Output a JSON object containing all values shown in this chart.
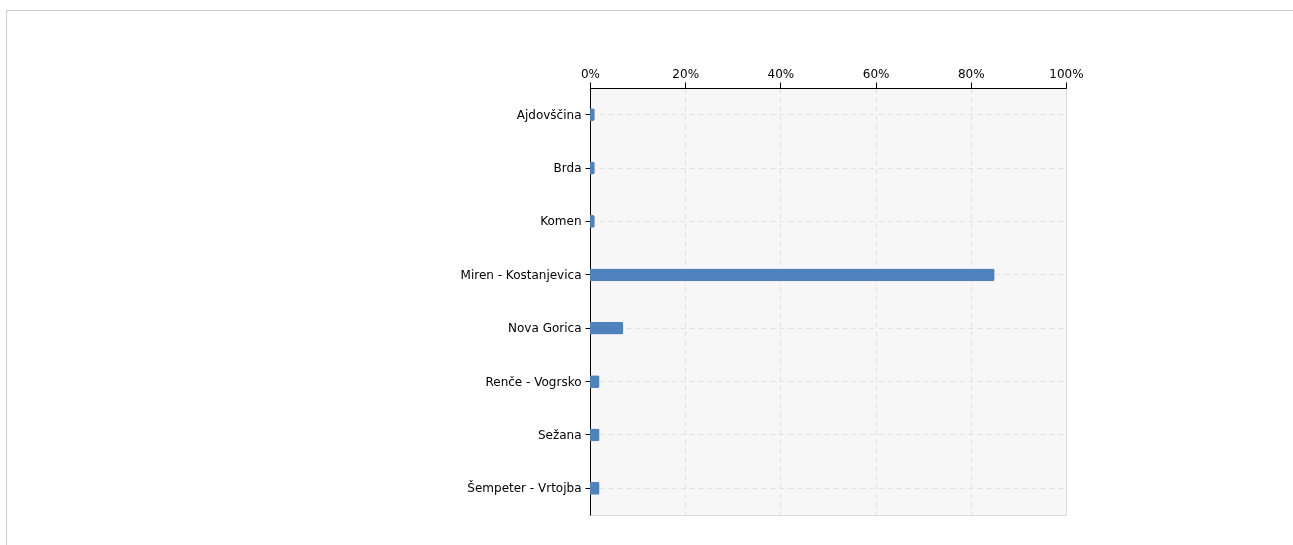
{
  "chart_data": {
    "type": "bar",
    "orientation": "horizontal",
    "categories": [
      "Ajdovščina",
      "Brda",
      "Komen",
      "Miren - Kostanjevica",
      "Nova Gorica",
      "Renče - Vogrsko",
      "Sežana",
      "Šempeter - Vrtojba"
    ],
    "values": [
      1,
      1,
      1,
      85,
      7,
      2,
      2,
      2
    ],
    "color": "#4f81bd",
    "xlim": [
      0,
      100
    ],
    "xticks": [
      {
        "value": 0,
        "label": "0%"
      },
      {
        "value": 20,
        "label": "20%"
      },
      {
        "value": 40,
        "label": "40%"
      },
      {
        "value": 60,
        "label": "60%"
      },
      {
        "value": 80,
        "label": "80%"
      },
      {
        "value": 100,
        "label": "100%"
      }
    ],
    "grid": true
  }
}
